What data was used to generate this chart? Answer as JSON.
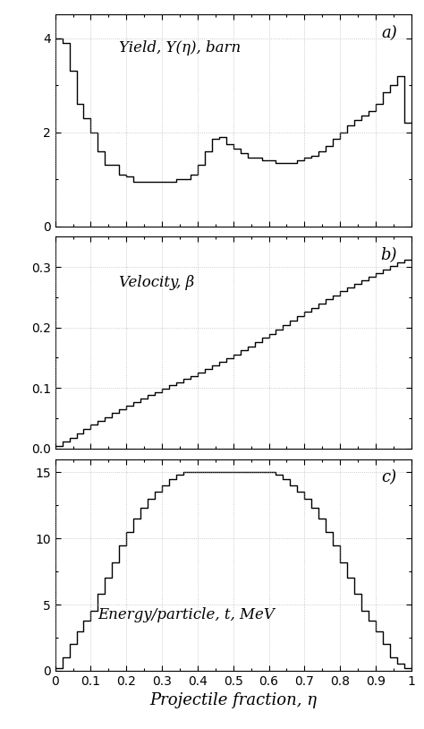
{
  "title_a": "Yield, Y(η), barn",
  "label_a": "a)",
  "title_b": "Velocity, β",
  "label_b": "b)",
  "title_c": "Energy/particle, t, MeV",
  "label_c": "c)",
  "xlabel": "Projectile fraction, η",
  "ylim_a": [
    0,
    4.5
  ],
  "yticks_a": [
    0,
    2,
    4
  ],
  "ylim_b": [
    0,
    0.35
  ],
  "yticks_b": [
    0,
    0.1,
    0.2,
    0.3
  ],
  "ylim_c": [
    0,
    16
  ],
  "yticks_c": [
    0,
    5,
    10,
    15
  ],
  "xlim": [
    0,
    1.0
  ],
  "xticks": [
    0,
    0.1,
    0.2,
    0.3,
    0.4,
    0.5,
    0.6,
    0.7,
    0.8,
    0.9,
    1.0
  ],
  "line_color": "#000000",
  "bg_color": "#ffffff",
  "grid_color": "#aaaaaa",
  "n_bins": 50
}
